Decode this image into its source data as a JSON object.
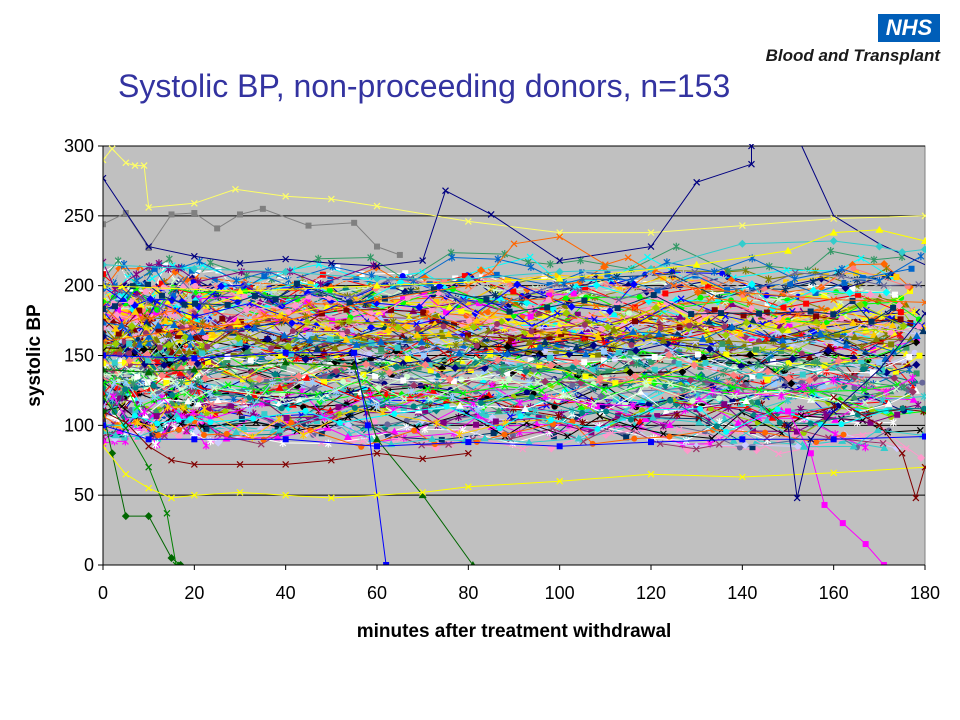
{
  "logo": {
    "badge": "NHS",
    "org": "Blood and Transplant",
    "badge_color": "#005eb8"
  },
  "slide": {
    "title": "Systolic BP, non-proceeding donors, n=153"
  },
  "chart_data": {
    "type": "line",
    "title": "",
    "xlabel": "minutes after treatment withdrawal",
    "ylabel": "systolic BP",
    "xlim": [
      0,
      180
    ],
    "ylim": [
      0,
      300
    ],
    "xticks": [
      0,
      20,
      40,
      60,
      80,
      100,
      120,
      140,
      160,
      180
    ],
    "yticks": [
      0,
      50,
      100,
      150,
      200,
      250,
      300
    ],
    "grid": "horizontal",
    "legend": "none",
    "plot_background": "#c0c0c0",
    "series_count_note": "153 series, one per donor; values approximated from the figure",
    "series": [
      {
        "color": "#ffff66",
        "marker": "x",
        "points": [
          [
            0,
            290
          ],
          [
            2,
            298
          ],
          [
            5,
            288
          ],
          [
            7,
            286
          ],
          [
            9,
            286
          ],
          [
            10,
            256
          ],
          [
            20,
            259
          ],
          [
            29,
            269
          ],
          [
            40,
            264
          ],
          [
            50,
            262
          ],
          [
            60,
            257
          ],
          [
            80,
            246
          ],
          [
            100,
            238
          ],
          [
            120,
            238
          ],
          [
            140,
            243
          ],
          [
            160,
            248
          ],
          [
            180,
            250
          ]
        ]
      },
      {
        "color": "#808080",
        "marker": "square",
        "points": [
          [
            0,
            244
          ],
          [
            5,
            252
          ],
          [
            10,
            227
          ],
          [
            15,
            251
          ],
          [
            20,
            252
          ],
          [
            25,
            241
          ],
          [
            30,
            251
          ],
          [
            35,
            255
          ],
          [
            45,
            243
          ],
          [
            55,
            245
          ],
          [
            60,
            228
          ],
          [
            65,
            222
          ]
        ]
      },
      {
        "color": "#000080",
        "marker": "x",
        "points": [
          [
            0,
            277
          ],
          [
            10,
            228
          ],
          [
            20,
            221
          ],
          [
            30,
            216
          ],
          [
            40,
            219
          ],
          [
            50,
            216
          ],
          [
            60,
            214
          ],
          [
            70,
            218
          ],
          [
            75,
            268
          ],
          [
            85,
            251
          ],
          [
            100,
            218
          ],
          [
            120,
            228
          ],
          [
            130,
            274
          ],
          [
            142,
            287
          ],
          [
            142,
            300
          ]
        ]
      },
      {
        "color": "#000080",
        "marker": "none",
        "points": [
          [
            153,
            300
          ],
          [
            160,
            250
          ],
          [
            170,
            230
          ],
          [
            180,
            215
          ]
        ]
      },
      {
        "color": "#800000",
        "marker": "x",
        "points": [
          [
            0,
            110
          ],
          [
            5,
            102
          ],
          [
            10,
            85
          ],
          [
            15,
            75
          ],
          [
            20,
            72
          ],
          [
            30,
            72
          ],
          [
            40,
            72
          ],
          [
            50,
            75
          ],
          [
            60,
            80
          ],
          [
            70,
            76
          ],
          [
            80,
            80
          ]
        ]
      },
      {
        "color": "#ff00ff",
        "marker": "square",
        "points": [
          [
            150,
            110
          ],
          [
            155,
            80
          ],
          [
            158,
            43
          ],
          [
            162,
            30
          ],
          [
            167,
            15
          ],
          [
            171,
            0
          ]
        ]
      },
      {
        "color": "#006600",
        "marker": "diamond",
        "points": [
          [
            0,
            110
          ],
          [
            2,
            80
          ],
          [
            5,
            35
          ],
          [
            10,
            35
          ],
          [
            15,
            5
          ],
          [
            17,
            0
          ]
        ]
      },
      {
        "color": "#008000",
        "marker": "x",
        "points": [
          [
            0,
            120
          ],
          [
            5,
            98
          ],
          [
            10,
            70
          ],
          [
            14,
            37
          ],
          [
            16,
            0
          ]
        ]
      },
      {
        "color": "#0000ff",
        "marker": "square",
        "points": [
          [
            0,
            150
          ],
          [
            20,
            148
          ],
          [
            40,
            152
          ],
          [
            55,
            152
          ],
          [
            58,
            100
          ],
          [
            62,
            0
          ]
        ]
      },
      {
        "color": "#006600",
        "marker": "triangle",
        "points": [
          [
            0,
            140
          ],
          [
            10,
            138
          ],
          [
            20,
            140
          ],
          [
            40,
            145
          ],
          [
            55,
            142
          ],
          [
            60,
            90
          ],
          [
            70,
            50
          ],
          [
            81,
            0
          ]
        ]
      },
      {
        "color": "#ffff00",
        "marker": "x",
        "points": [
          [
            0,
            85
          ],
          [
            5,
            65
          ],
          [
            10,
            55
          ],
          [
            15,
            48
          ],
          [
            20,
            50
          ],
          [
            30,
            52
          ],
          [
            40,
            50
          ],
          [
            50,
            48
          ],
          [
            60,
            50
          ],
          [
            70,
            52
          ],
          [
            80,
            56
          ],
          [
            100,
            60
          ],
          [
            120,
            65
          ],
          [
            140,
            63
          ],
          [
            160,
            66
          ],
          [
            180,
            70
          ]
        ]
      },
      {
        "color": "#0000ff",
        "marker": "square",
        "points": [
          [
            0,
            100
          ],
          [
            10,
            90
          ],
          [
            20,
            90
          ],
          [
            40,
            90
          ],
          [
            60,
            85
          ],
          [
            80,
            88
          ],
          [
            100,
            85
          ],
          [
            120,
            88
          ],
          [
            140,
            90
          ],
          [
            160,
            90
          ],
          [
            180,
            92
          ]
        ]
      },
      {
        "color": "#000080",
        "marker": "x",
        "points": [
          [
            150,
            100
          ],
          [
            152,
            48
          ],
          [
            155,
            90
          ],
          [
            160,
            110
          ],
          [
            170,
            140
          ],
          [
            180,
            180
          ]
        ]
      },
      {
        "color": "#800000",
        "marker": "x",
        "points": [
          [
            160,
            120
          ],
          [
            170,
            100
          ],
          [
            175,
            80
          ],
          [
            178,
            48
          ],
          [
            180,
            70
          ]
        ]
      },
      {
        "color": "#ff6600",
        "marker": "x",
        "points": [
          [
            0,
            160
          ],
          [
            20,
            170
          ],
          [
            40,
            175
          ],
          [
            60,
            190
          ],
          [
            80,
            200
          ],
          [
            85,
            210
          ],
          [
            90,
            230
          ],
          [
            100,
            235
          ],
          [
            110,
            215
          ],
          [
            115,
            220
          ],
          [
            125,
            200
          ],
          [
            140,
            195
          ],
          [
            160,
            190
          ],
          [
            180,
            188
          ]
        ]
      },
      {
        "color": "#33cccc",
        "marker": "diamond",
        "points": [
          [
            0,
            215
          ],
          [
            20,
            212
          ],
          [
            40,
            210
          ],
          [
            60,
            205
          ],
          [
            80,
            205
          ],
          [
            100,
            210
          ],
          [
            120,
            212
          ],
          [
            140,
            230
          ],
          [
            160,
            232
          ],
          [
            170,
            228
          ],
          [
            175,
            224
          ],
          [
            180,
            226
          ]
        ]
      },
      {
        "color": "#ffff00",
        "marker": "triangle",
        "points": [
          [
            0,
            200
          ],
          [
            30,
            196
          ],
          [
            60,
            200
          ],
          [
            100,
            205
          ],
          [
            130,
            215
          ],
          [
            150,
            225
          ],
          [
            160,
            238
          ],
          [
            170,
            240
          ],
          [
            180,
            232
          ]
        ]
      }
    ]
  }
}
